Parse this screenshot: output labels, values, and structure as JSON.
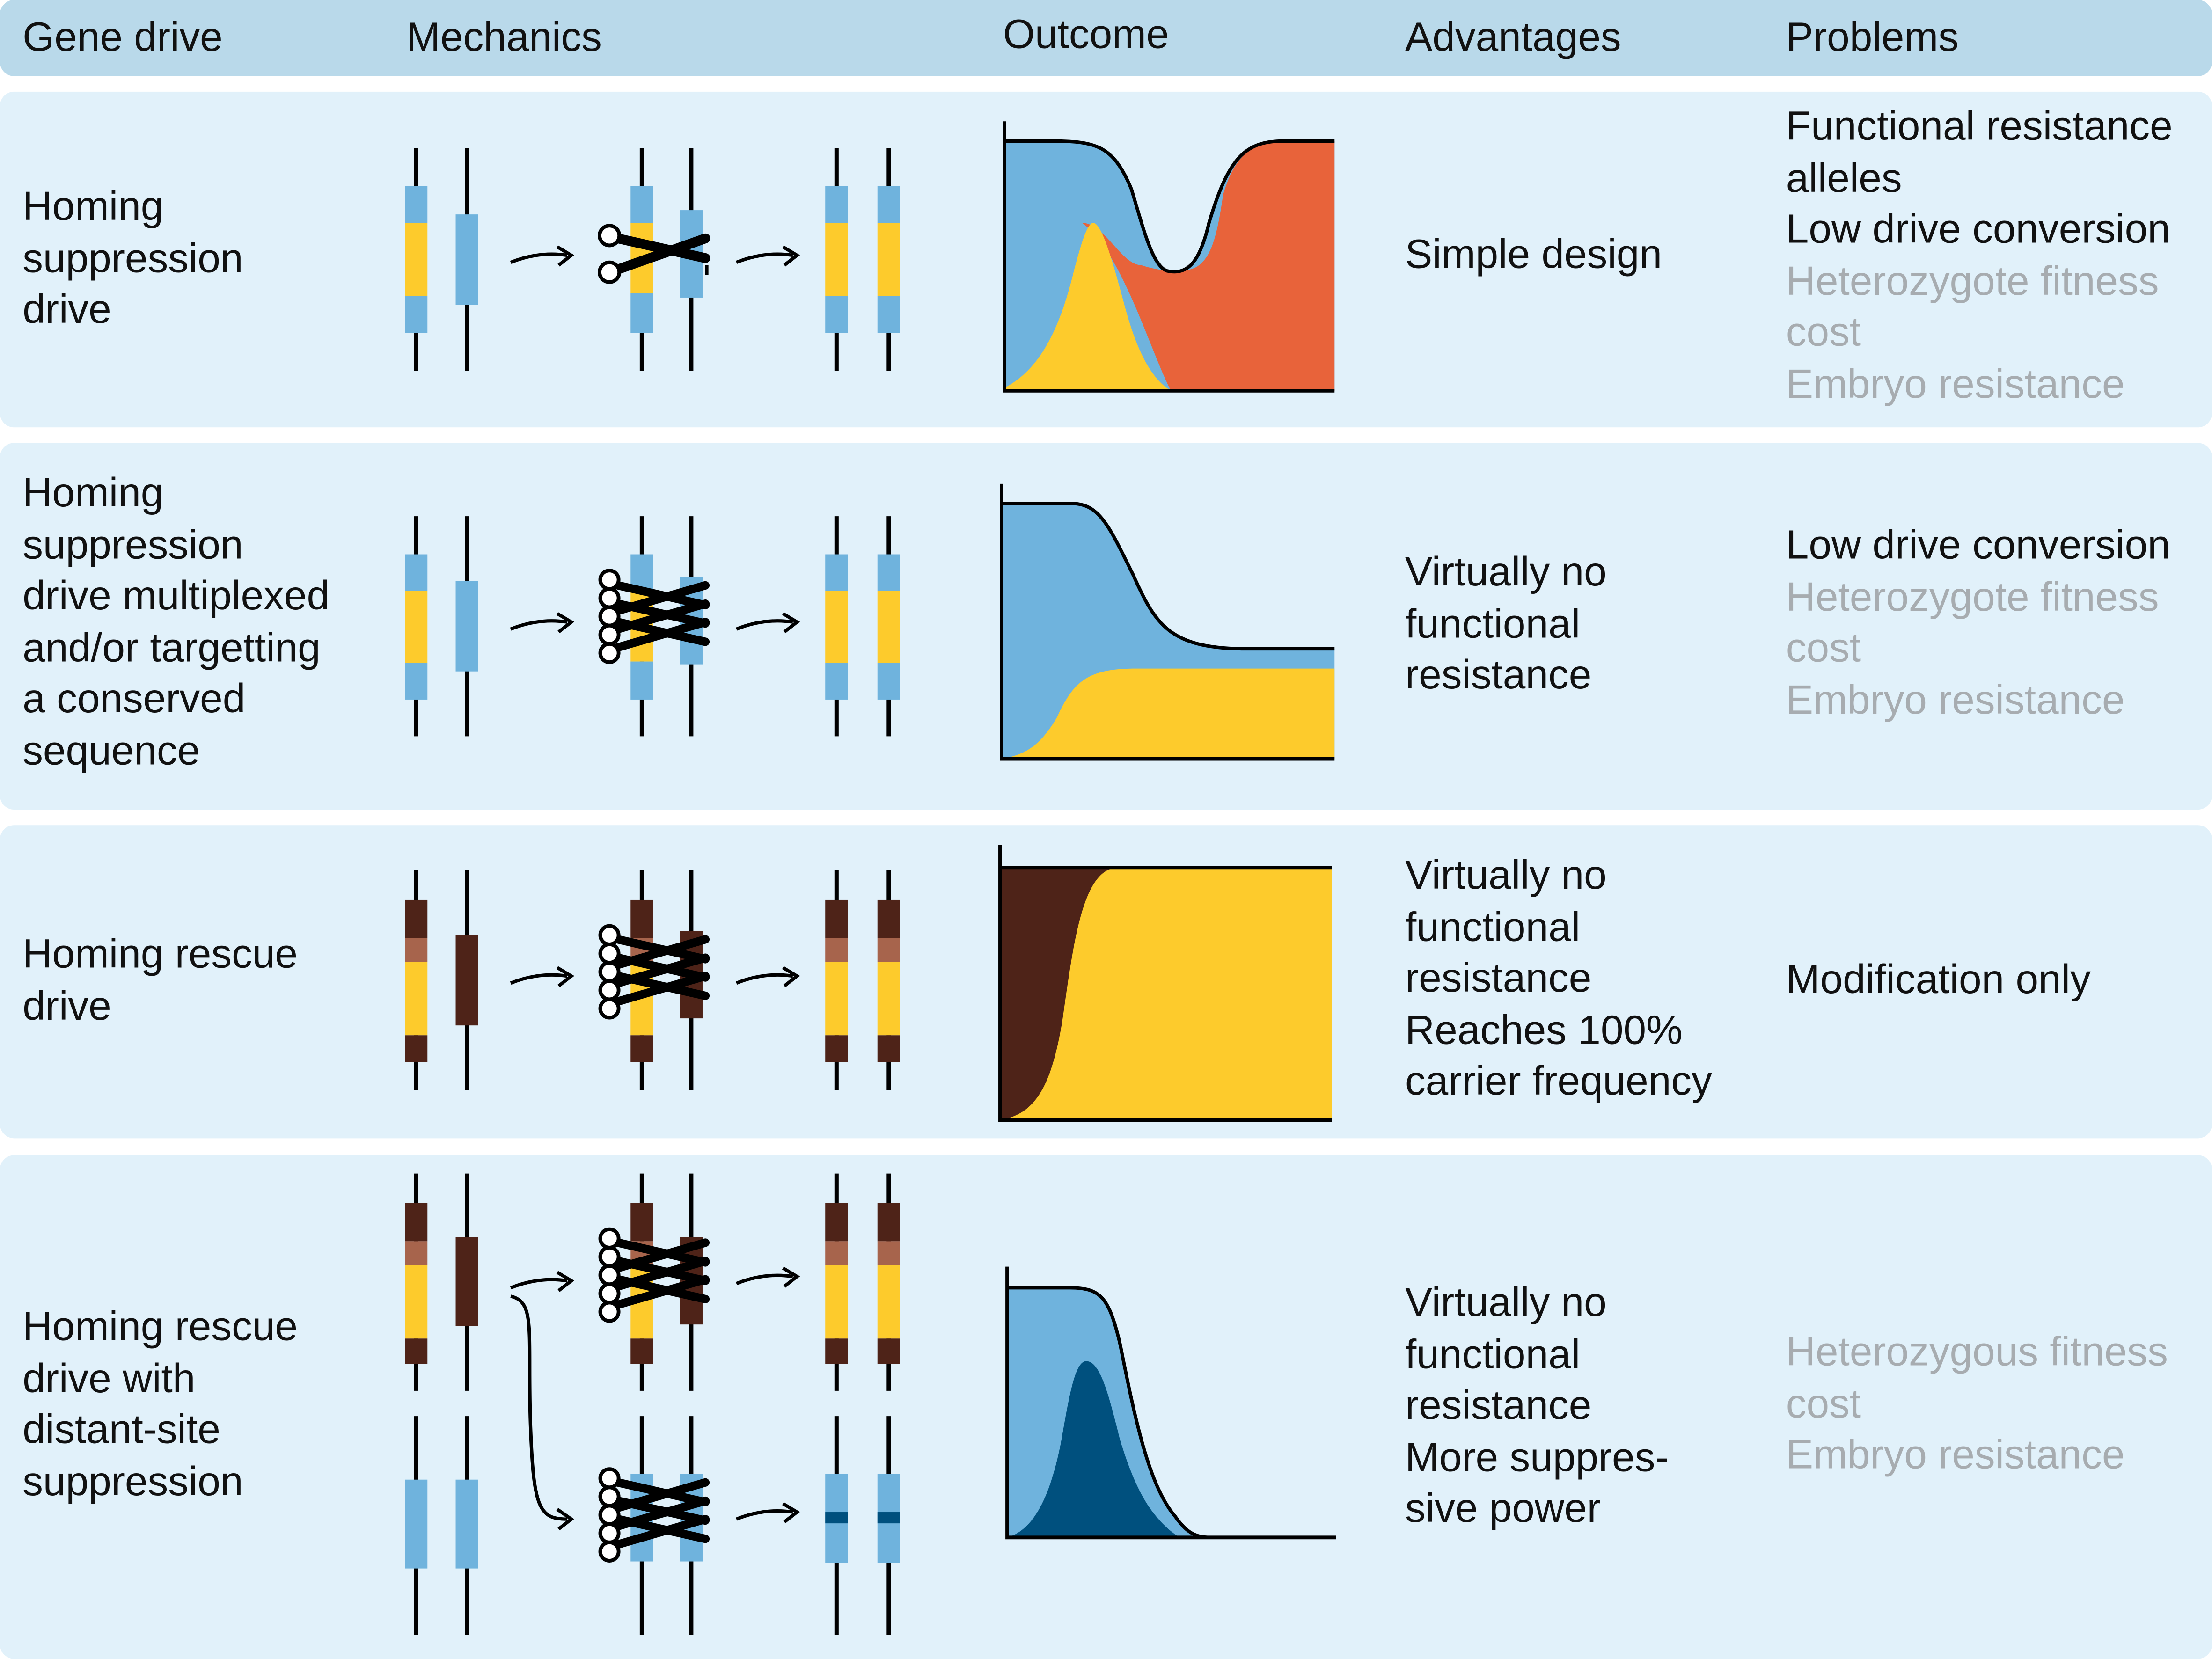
{
  "header": {
    "gene_drive": "Gene drive",
    "mechanics": "Mechanics",
    "outcome": "Outcome",
    "advantages": "Advantages",
    "problems": "Problems"
  },
  "colors": {
    "header_bg": "#b9d9ea",
    "row_bg": "#e1f1fa",
    "wild_type": "#6fb3dd",
    "drive": "#fdcb2c",
    "resistance": "#e8633a",
    "rescue_dark": "#4e2318",
    "rescue_light": "#a7644c",
    "suppression_dark": "#00507e",
    "problem_gray": "#a7acb0"
  },
  "rows": [
    {
      "name_lines": [
        "Homing",
        "suppression",
        "drive"
      ],
      "advantage_lines": [
        "Simple design"
      ],
      "problems": [
        {
          "lines": [
            "Functional resistance",
            "alleles"
          ],
          "style": "dark"
        },
        {
          "lines": [
            "Low drive conversion"
          ],
          "style": "dark"
        },
        {
          "lines": [
            "Heterozygote fitness",
            "cost"
          ],
          "style": "gray"
        },
        {
          "lines": [
            "Embryo resistance"
          ],
          "style": "gray"
        }
      ],
      "mechanics_icons": [
        "chromosome-pair",
        "scissors-single",
        "converted-pair"
      ],
      "outcome_areas": [
        "wild-type",
        "drive",
        "resistance"
      ]
    },
    {
      "name_lines": [
        "Homing",
        "suppression",
        "drive multiplexed",
        "and/or targetting",
        "a conserved",
        "sequence"
      ],
      "advantage_lines": [
        "Virtually no",
        "functional",
        "resistance"
      ],
      "problems": [
        {
          "lines": [
            "Low drive conversion"
          ],
          "style": "dark"
        },
        {
          "lines": [
            "Heterozygote fitness",
            "cost"
          ],
          "style": "gray"
        },
        {
          "lines": [
            "Embryo resistance"
          ],
          "style": "gray"
        }
      ],
      "mechanics_icons": [
        "chromosome-pair",
        "scissors-multiplexed",
        "converted-pair"
      ],
      "outcome_areas": [
        "wild-type",
        "drive"
      ]
    },
    {
      "name_lines": [
        "Homing rescue",
        "drive"
      ],
      "advantage_lines": [
        "Virtually no",
        "functional",
        "resistance",
        "Reaches 100%",
        "carrier frequency"
      ],
      "problems": [
        {
          "lines": [
            "Modification only"
          ],
          "style": "dark"
        }
      ],
      "mechanics_icons": [
        "rescue-chromosome-pair",
        "scissors-multiplexed",
        "converted-rescue-pair"
      ],
      "outcome_areas": [
        "rescue-target",
        "drive"
      ]
    },
    {
      "name_lines": [
        "Homing rescue",
        "drive with",
        "distant-site",
        "suppression"
      ],
      "advantage_lines": [
        "Virtually no",
        "functional",
        "resistance",
        "More suppres-",
        "sive power"
      ],
      "problems": [
        {
          "lines": [
            "Heterozygous fitness",
            "cost"
          ],
          "style": "gray"
        },
        {
          "lines": [
            "Embryo resistance"
          ],
          "style": "gray"
        }
      ],
      "mechanics_icons": [
        "rescue-chromosome-pair",
        "scissors-multiplexed",
        "converted-rescue-pair",
        "target-chromosome-pair",
        "scissors-multiplexed",
        "disrupted-pair"
      ],
      "outcome_areas": [
        "wild-type",
        "suppression"
      ]
    }
  ]
}
